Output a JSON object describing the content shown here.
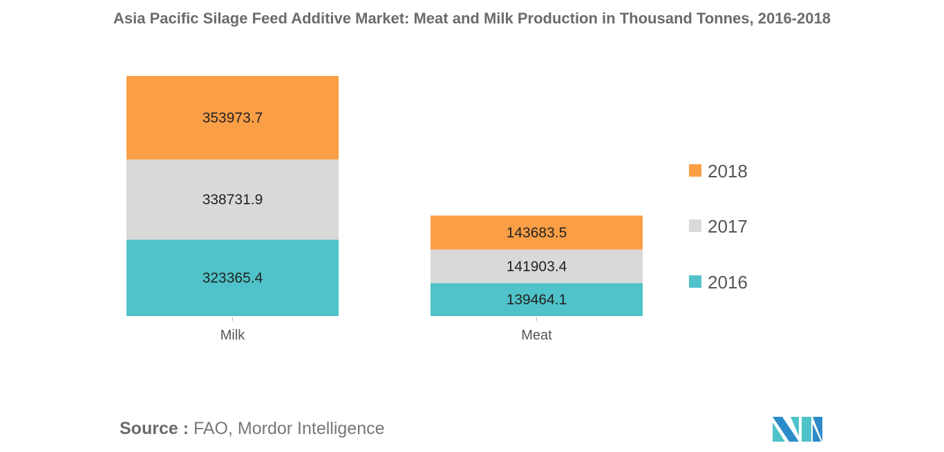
{
  "chart_data": {
    "type": "bar",
    "stacked": true,
    "title": "Asia Pacific Silage Feed Additive Market: Meat and Milk Production in Thousand Tonnes, 2016-2018",
    "categories": [
      "Milk",
      "Meat"
    ],
    "series": [
      {
        "name": "2016",
        "color": "#4fc3c9",
        "values": [
          323365.4,
          139464.1
        ]
      },
      {
        "name": "2017",
        "color": "#d9d9d9",
        "values": [
          338731.9,
          141903.4
        ]
      },
      {
        "name": "2018",
        "color": "#fb9f46",
        "values": [
          353973.7,
          143683.5
        ]
      }
    ],
    "legend_placement": "right",
    "grid": false,
    "y_axis_visible": false
  },
  "source": {
    "label": "Source :",
    "text": "FAO, Mordor Intelligence"
  },
  "logo": {
    "text": "MI",
    "colors": [
      "#2e8bc9",
      "#4fc3c9"
    ]
  }
}
